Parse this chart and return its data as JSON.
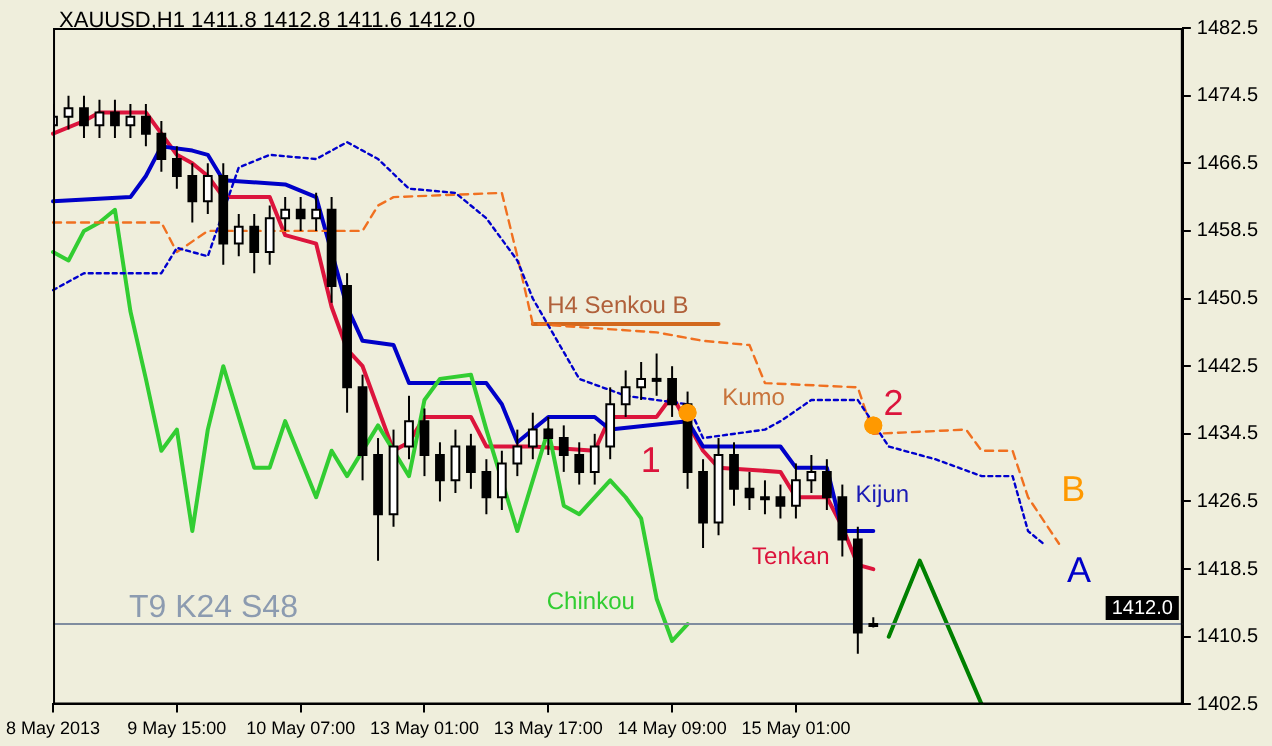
{
  "chart_data": {
    "type": "candlestick",
    "title": "XAUUSD,H1 1411.8 1412.8 1411.6 1412.0",
    "categories": [
      "8 May 2013",
      null,
      null,
      null,
      null,
      null,
      null,
      null,
      "9 May 15:00",
      null,
      null,
      null,
      null,
      null,
      null,
      null,
      "10 May 07:00",
      null,
      null,
      null,
      null,
      null,
      null,
      null,
      "13 May 01:00",
      null,
      null,
      null,
      null,
      null,
      null,
      null,
      "13 May 17:00",
      null,
      null,
      null,
      null,
      null,
      null,
      null,
      "14 May 09:00",
      null,
      null,
      null,
      null,
      null,
      null,
      null,
      "15 May 01:00",
      null,
      null,
      null,
      null,
      null,
      null,
      null,
      null,
      null,
      null,
      null,
      null,
      null,
      null,
      null,
      null,
      null,
      null,
      null,
      null,
      null,
      null,
      null,
      null,
      null
    ],
    "ohlc": [
      [
        1471,
        1473.5,
        1469.5,
        1472
      ],
      [
        1472,
        1474.5,
        1470.5,
        1473
      ],
      [
        1473,
        1474.5,
        1469.5,
        1471
      ],
      [
        1471,
        1474,
        1469.5,
        1472.5
      ],
      [
        1472.5,
        1474,
        1469.5,
        1471
      ],
      [
        1471,
        1473.5,
        1469.5,
        1472
      ],
      [
        1472,
        1473.5,
        1468.5,
        1470
      ],
      [
        1470,
        1471.5,
        1465.5,
        1467
      ],
      [
        1467,
        1468.5,
        1463.5,
        1465
      ],
      [
        1465,
        1466.5,
        1459.5,
        1462
      ],
      [
        1462,
        1466.5,
        1460.5,
        1465
      ],
      [
        1465,
        1466.5,
        1454.5,
        1457
      ],
      [
        1457,
        1460.5,
        1455.5,
        1459
      ],
      [
        1459,
        1460.5,
        1453.5,
        1456
      ],
      [
        1456,
        1461.5,
        1454.5,
        1460
      ],
      [
        1460,
        1462.5,
        1458.5,
        1461
      ],
      [
        1461,
        1462.5,
        1458.5,
        1460
      ],
      [
        1460,
        1463,
        1458.5,
        1461
      ],
      [
        1461,
        1462.5,
        1450,
        1452
      ],
      [
        1452,
        1453.5,
        1437,
        1440
      ],
      [
        1440,
        1441.5,
        1429,
        1432
      ],
      [
        1432,
        1434,
        1419.5,
        1425
      ],
      [
        1425,
        1435,
        1423.5,
        1433
      ],
      [
        1433,
        1439,
        1431.5,
        1436
      ],
      [
        1436,
        1437.5,
        1429.5,
        1432
      ],
      [
        1432,
        1433.5,
        1426.5,
        1429
      ],
      [
        1429,
        1435,
        1427.5,
        1433
      ],
      [
        1433,
        1434.5,
        1428,
        1430
      ],
      [
        1430,
        1431.5,
        1425,
        1427
      ],
      [
        1427,
        1432.5,
        1425.5,
        1431
      ],
      [
        1431,
        1435,
        1429.5,
        1433
      ],
      [
        1433,
        1437,
        1431.5,
        1435
      ],
      [
        1435,
        1436.5,
        1432,
        1434
      ],
      [
        1434,
        1435.5,
        1430,
        1432
      ],
      [
        1432,
        1433.5,
        1428.5,
        1430
      ],
      [
        1430,
        1434.5,
        1428.5,
        1433
      ],
      [
        1433,
        1440,
        1431.5,
        1438
      ],
      [
        1438,
        1442,
        1436.5,
        1440
      ],
      [
        1440,
        1443,
        1438.5,
        1441
      ],
      [
        1441,
        1444,
        1439,
        1441
      ],
      [
        1441,
        1442.5,
        1436.5,
        1438
      ],
      [
        1438,
        1439.5,
        1428,
        1430
      ],
      [
        1430,
        1431.5,
        1421,
        1424
      ],
      [
        1424,
        1434,
        1422.5,
        1432
      ],
      [
        1432,
        1433.5,
        1426,
        1428
      ],
      [
        1428,
        1430,
        1425.5,
        1427
      ],
      [
        1427,
        1429,
        1425,
        1427
      ],
      [
        1427,
        1428.5,
        1424.5,
        1426
      ],
      [
        1426,
        1431,
        1424.5,
        1429
      ],
      [
        1429,
        1432,
        1427.5,
        1430
      ],
      [
        1430,
        1431.5,
        1425.5,
        1427
      ],
      [
        1427,
        1428.5,
        1420,
        1422
      ],
      [
        1422,
        1423.5,
        1408.5,
        1411
      ],
      [
        1411.8,
        1412.8,
        1411.6,
        1412.0
      ],
      null,
      null,
      null,
      null,
      null,
      null,
      null,
      null,
      null,
      null,
      null,
      null,
      null,
      null,
      null,
      null,
      null,
      null,
      null,
      null
    ],
    "series": [
      {
        "type": "line",
        "line_style": "dotted",
        "color": "#0000cd",
        "values": [
          1451.5,
          null,
          1453.5,
          null,
          null,
          null,
          null,
          1453.5,
          1456.5,
          null,
          1455.5,
          null,
          1466,
          null,
          1467.5,
          null,
          null,
          1467,
          null,
          1469,
          null,
          1467,
          null,
          1463.5,
          null,
          null,
          1463,
          null,
          1460,
          null,
          1455,
          1450.5,
          null,
          null,
          1441,
          null,
          null,
          1439,
          null,
          null,
          null,
          1438,
          1434,
          null,
          null,
          null,
          1435,
          1436,
          null,
          1438.5,
          null,
          null,
          1438.5,
          null,
          1433,
          null,
          null,
          1431.5,
          null,
          null,
          1429.5,
          null,
          1429.5,
          1423,
          1421.5,
          null,
          null,
          null,
          null,
          null,
          null,
          null,
          null,
          null
        ]
      },
      {
        "type": "line",
        "line_style": "dashed",
        "color": "#f07020",
        "values": [
          1459.5,
          null,
          null,
          null,
          null,
          null,
          null,
          1459.5,
          1456,
          null,
          1458.5,
          null,
          null,
          null,
          null,
          null,
          null,
          null,
          null,
          null,
          1458.5,
          1461.5,
          1462.5,
          null,
          null,
          null,
          null,
          null,
          null,
          1463,
          1455.5,
          1447.5,
          null,
          null,
          null,
          null,
          null,
          null,
          null,
          1446.5,
          null,
          null,
          1445.5,
          null,
          null,
          1445,
          1440.5,
          null,
          null,
          null,
          null,
          null,
          1440,
          1434.5,
          null,
          null,
          null,
          null,
          null,
          1435,
          1432.5,
          null,
          1432.5,
          1427,
          null,
          1421.5,
          null,
          null,
          null,
          null,
          null,
          null,
          null,
          null
        ]
      },
      {
        "type": "line",
        "line_style": "solid",
        "color": "#d2691e",
        "values": [
          null,
          null,
          null,
          null,
          null,
          null,
          null,
          null,
          null,
          null,
          null,
          null,
          null,
          null,
          null,
          null,
          null,
          null,
          null,
          null,
          null,
          null,
          null,
          null,
          null,
          null,
          null,
          null,
          null,
          null,
          null,
          1447.5,
          null,
          null,
          null,
          null,
          null,
          null,
          null,
          null,
          null,
          null,
          null,
          1447.5,
          null,
          null,
          null,
          null,
          null,
          null,
          null,
          null,
          null,
          null,
          null,
          null,
          null,
          null,
          null,
          null,
          null,
          null,
          null,
          null,
          null,
          null,
          null,
          null,
          null,
          null,
          null,
          null,
          null,
          null
        ]
      },
      {
        "type": "line",
        "line_style": "solid",
        "color": "#32cd32",
        "values": [
          1456,
          1455,
          1458.5,
          1459.5,
          1461,
          1449,
          1441,
          1432.5,
          1435,
          1423,
          1435,
          1442.5,
          null,
          1430.5,
          1430.5,
          1436,
          null,
          1427,
          1432.5,
          1429.5,
          null,
          1435.5,
          1432.5,
          1429.5,
          1438.5,
          1441,
          null,
          1441.5,
          1435,
          null,
          1423,
          null,
          1435,
          1426,
          1425,
          null,
          1429,
          1427,
          1424.5,
          1415,
          1410,
          1412,
          null,
          null,
          null,
          null,
          null,
          null,
          null,
          null,
          null,
          null,
          null,
          null,
          null,
          null,
          null,
          null,
          null,
          null,
          null,
          null,
          null,
          null,
          null,
          null,
          null,
          null,
          null,
          null,
          null,
          null,
          null,
          null
        ]
      },
      {
        "type": "line",
        "line_style": "solid",
        "color": "#0000c8",
        "values": [
          1462,
          null,
          null,
          null,
          null,
          1462.5,
          1465,
          1468.5,
          null,
          1468,
          1467.5,
          1464.5,
          null,
          null,
          null,
          1464,
          null,
          1462.5,
          null,
          1449.5,
          1445.5,
          null,
          1445,
          1440.5,
          null,
          null,
          null,
          null,
          1440.5,
          1438,
          1433.5,
          null,
          1436.5,
          null,
          null,
          1436.5,
          1435,
          null,
          null,
          null,
          null,
          1436,
          1433,
          null,
          null,
          null,
          null,
          1433,
          1430.5,
          null,
          1430.5,
          1423,
          null,
          1423,
          null,
          null,
          null,
          null,
          null,
          null,
          null,
          null,
          null,
          null,
          null,
          null,
          null,
          null,
          null,
          null,
          null,
          null,
          null,
          null
        ]
      },
      {
        "type": "line",
        "line_style": "solid",
        "color": "#dc143c",
        "values": [
          1470,
          null,
          1471.5,
          1472.5,
          null,
          null,
          1472.5,
          1470,
          1467.5,
          1466.5,
          1465,
          1462.5,
          null,
          null,
          1462.5,
          1458,
          null,
          1457,
          1449.5,
          1444.5,
          1442.5,
          null,
          1432.5,
          1433.5,
          1436.5,
          null,
          null,
          1436.5,
          1433,
          null,
          null,
          1433,
          null,
          null,
          null,
          1432.5,
          1436.5,
          null,
          null,
          1436.5,
          1439,
          null,
          1432.5,
          1430.5,
          null,
          null,
          null,
          1430,
          1427,
          null,
          1427,
          1423.5,
          1419,
          1418.5,
          null,
          null,
          null,
          null,
          null,
          null,
          null,
          null,
          null,
          null,
          null,
          null,
          null,
          null,
          null,
          null,
          null,
          null,
          null,
          null
        ]
      },
      {
        "type": "line",
        "line_style": "solid",
        "color": "#008000",
        "values": [
          null,
          null,
          null,
          null,
          null,
          null,
          null,
          null,
          null,
          null,
          null,
          null,
          null,
          null,
          null,
          null,
          null,
          null,
          null,
          null,
          null,
          null,
          null,
          null,
          null,
          null,
          null,
          null,
          null,
          null,
          null,
          null,
          null,
          null,
          null,
          null,
          null,
          null,
          null,
          null,
          null,
          null,
          null,
          null,
          null,
          null,
          null,
          null,
          null,
          null,
          null,
          null,
          null,
          null,
          1410.5,
          null,
          1419.5,
          null,
          null,
          null,
          1402.5,
          null,
          null,
          null,
          null,
          null,
          null,
          null,
          null,
          null,
          null,
          null,
          null,
          null
        ]
      },
      {
        "type": "scatter",
        "marker": "circle",
        "color": "#ff9900",
        "values": [
          null,
          null,
          null,
          null,
          null,
          null,
          null,
          null,
          null,
          null,
          null,
          null,
          null,
          null,
          null,
          null,
          null,
          null,
          null,
          null,
          null,
          null,
          null,
          null,
          null,
          null,
          null,
          null,
          null,
          null,
          null,
          null,
          null,
          null,
          null,
          null,
          null,
          null,
          null,
          null,
          null,
          1437,
          null,
          null,
          null,
          null,
          null,
          null,
          null,
          null,
          null,
          null,
          null,
          1435.5,
          null,
          null,
          null,
          null,
          null,
          null,
          null,
          null,
          null,
          null,
          null,
          null,
          null,
          null,
          null,
          null,
          null,
          null,
          null,
          null
        ]
      }
    ],
    "ylim": [
      1402.5,
      1482.5
    ],
    "yticks": [
      1402.5,
      1410.5,
      1418.5,
      1426.5,
      1434.5,
      1442.5,
      1450.5,
      1458.5,
      1466.5,
      1474.5,
      1482.5
    ],
    "ref_lines": [
      {
        "axis": "y",
        "value": 1412.0,
        "label": "1412.0",
        "color": "#7f8c9f"
      }
    ],
    "annotations": [
      "T9 K24 S48",
      "H4 Senkou B",
      "Kumo",
      "Kijun",
      "Tenkan",
      "Chinkou",
      "1",
      "2",
      "B",
      "A"
    ],
    "legend": false,
    "grid": false
  }
}
